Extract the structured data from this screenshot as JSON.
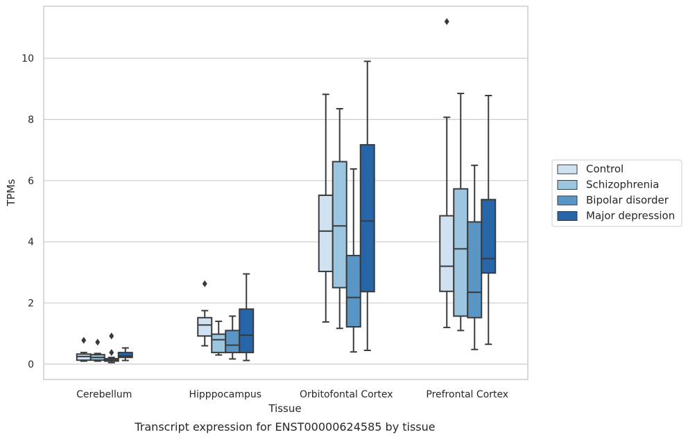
{
  "chart_data": {
    "type": "box",
    "xlabel": "Tissue",
    "ylabel": "TPMs",
    "caption": "Transcript expression for ENST00000624585 by tissue",
    "ylim": [
      -0.5,
      11.7
    ],
    "yticks": [
      0,
      2,
      4,
      6,
      8,
      10
    ],
    "grid": "horizontal",
    "legend_position": "right",
    "categories": [
      "Cerebellum",
      "Hipppocampus",
      "Orbitofontal Cortex",
      "Prefrontal Cortex"
    ],
    "series": [
      {
        "name": "Control",
        "color": "#d0e1f2",
        "boxes": [
          {
            "min": 0.1,
            "q1": 0.13,
            "median": 0.25,
            "q3": 0.33,
            "max": 0.38,
            "outliers": [
              0.78
            ]
          },
          {
            "min": 0.6,
            "q1": 0.92,
            "median": 1.28,
            "q3": 1.52,
            "max": 1.75,
            "outliers": [
              2.63
            ]
          },
          {
            "min": 1.38,
            "q1": 3.03,
            "median": 4.35,
            "q3": 5.52,
            "max": 8.82,
            "outliers": []
          },
          {
            "min": 1.2,
            "q1": 2.38,
            "median": 3.2,
            "q3": 4.85,
            "max": 8.07,
            "outliers": [
              11.2
            ]
          }
        ]
      },
      {
        "name": "Schizophrenia",
        "color": "#9cc5e0",
        "boxes": [
          {
            "min": 0.1,
            "q1": 0.13,
            "median": 0.22,
            "q3": 0.31,
            "max": 0.35,
            "outliers": [
              0.72
            ]
          },
          {
            "min": 0.3,
            "q1": 0.38,
            "median": 0.8,
            "q3": 0.98,
            "max": 1.4,
            "outliers": []
          },
          {
            "min": 1.17,
            "q1": 2.5,
            "median": 4.52,
            "q3": 6.62,
            "max": 8.35,
            "outliers": []
          },
          {
            "min": 1.1,
            "q1": 1.57,
            "median": 3.77,
            "q3": 5.73,
            "max": 8.85,
            "outliers": []
          }
        ]
      },
      {
        "name": "Bipolar disorder",
        "color": "#5a96c5",
        "boxes": [
          {
            "min": 0.05,
            "q1": 0.1,
            "median": 0.13,
            "q3": 0.18,
            "max": 0.22,
            "outliers": [
              0.38,
              0.92
            ]
          },
          {
            "min": 0.17,
            "q1": 0.38,
            "median": 0.62,
            "q3": 1.1,
            "max": 1.57,
            "outliers": []
          },
          {
            "min": 0.4,
            "q1": 1.22,
            "median": 2.18,
            "q3": 3.55,
            "max": 6.38,
            "outliers": []
          },
          {
            "min": 0.48,
            "q1": 1.52,
            "median": 2.35,
            "q3": 4.65,
            "max": 6.5,
            "outliers": []
          }
        ]
      },
      {
        "name": "Major depression",
        "color": "#2666a8",
        "boxes": [
          {
            "min": 0.12,
            "q1": 0.22,
            "median": 0.27,
            "q3": 0.38,
            "max": 0.53,
            "outliers": []
          },
          {
            "min": 0.12,
            "q1": 0.38,
            "median": 0.95,
            "q3": 1.8,
            "max": 2.95,
            "outliers": []
          },
          {
            "min": 0.45,
            "q1": 2.37,
            "median": 4.68,
            "q3": 7.17,
            "max": 9.9,
            "outliers": []
          },
          {
            "min": 0.65,
            "q1": 2.98,
            "median": 3.45,
            "q3": 5.38,
            "max": 8.78,
            "outliers": []
          }
        ]
      }
    ]
  }
}
